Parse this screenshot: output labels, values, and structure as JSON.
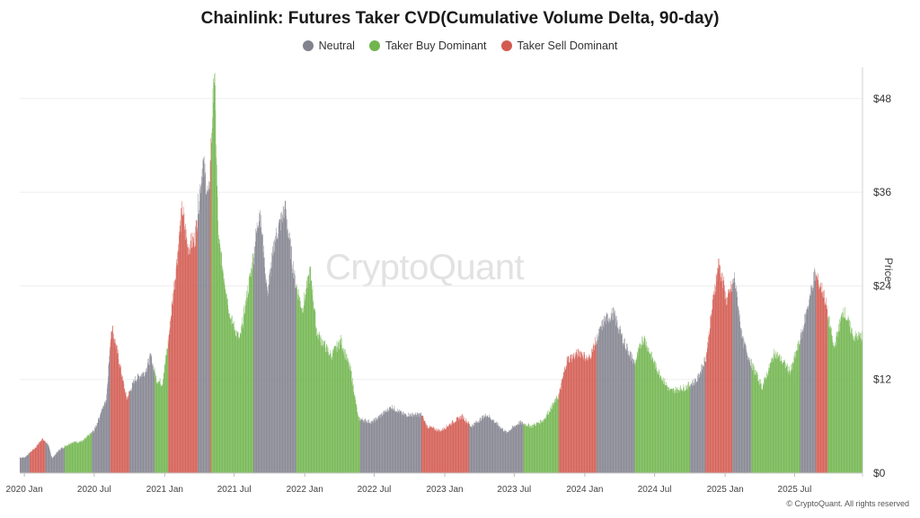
{
  "chart_data": {
    "type": "bar",
    "title": "Chainlink: Futures Taker CVD(Cumulative Volume Delta, 90-day)",
    "ylabel": "Price",
    "xlabel": "",
    "ylim": [
      0,
      52
    ],
    "y_ticks": [
      "$0",
      "$12",
      "$24",
      "$36",
      "$48"
    ],
    "y_tick_values": [
      0,
      12,
      24,
      36,
      48
    ],
    "x_ticks": [
      "2020 Jan",
      "2020 Jul",
      "2021 Jan",
      "2021 Jul",
      "2022 Jan",
      "2022 Jul",
      "2023 Jan",
      "2023 Jul",
      "2024 Jan",
      "2024 Jul",
      "2025 Jan",
      "2025 Jul"
    ],
    "x_tick_dates": [
      "2020-01-01",
      "2020-07-01",
      "2021-01-01",
      "2021-07-01",
      "2022-01-01",
      "2022-07-01",
      "2023-01-01",
      "2023-07-01",
      "2024-01-01",
      "2024-07-01",
      "2025-01-01",
      "2025-07-01"
    ],
    "x_range": [
      "2019-12-20",
      "2025-12-25"
    ],
    "grid": true,
    "legend_position": "top-center",
    "series": [
      {
        "name": "Neutral",
        "color": "#83838f"
      },
      {
        "name": "Taker Buy Dominant",
        "color": "#71b54e"
      },
      {
        "name": "Taker Sell Dominant",
        "color": "#d35a50"
      }
    ],
    "price_points": [
      [
        "2020-01-01",
        2.0
      ],
      [
        "2020-02-01",
        3.4
      ],
      [
        "2020-02-15",
        4.4
      ],
      [
        "2020-03-01",
        3.8
      ],
      [
        "2020-03-13",
        1.9
      ],
      [
        "2020-04-01",
        3.0
      ],
      [
        "2020-05-01",
        3.9
      ],
      [
        "2020-06-01",
        4.1
      ],
      [
        "2020-07-01",
        5.5
      ],
      [
        "2020-07-20",
        8.0
      ],
      [
        "2020-08-01",
        9.5
      ],
      [
        "2020-08-15",
        19.0
      ],
      [
        "2020-09-01",
        15.0
      ],
      [
        "2020-09-23",
        9.5
      ],
      [
        "2020-10-15",
        12.0
      ],
      [
        "2020-11-10",
        13.0
      ],
      [
        "2020-11-25",
        15.0
      ],
      [
        "2020-12-10",
        12.0
      ],
      [
        "2020-12-25",
        11.5
      ],
      [
        "2021-01-10",
        17.0
      ],
      [
        "2021-01-25",
        24.0
      ],
      [
        "2021-02-15",
        34.0
      ],
      [
        "2021-03-01",
        29.0
      ],
      [
        "2021-03-20",
        30.0
      ],
      [
        "2021-04-10",
        40.0
      ],
      [
        "2021-04-25",
        35.0
      ],
      [
        "2021-05-10",
        52.0
      ],
      [
        "2021-05-20",
        30.0
      ],
      [
        "2021-06-05",
        25.0
      ],
      [
        "2021-06-20",
        20.0
      ],
      [
        "2021-07-15",
        17.0
      ],
      [
        "2021-08-20",
        28.0
      ],
      [
        "2021-09-05",
        34.0
      ],
      [
        "2021-09-25",
        23.0
      ],
      [
        "2021-10-15",
        30.0
      ],
      [
        "2021-11-10",
        34.0
      ],
      [
        "2021-12-05",
        25.0
      ],
      [
        "2021-12-25",
        21.0
      ],
      [
        "2022-01-15",
        26.0
      ],
      [
        "2022-02-01",
        18.0
      ],
      [
        "2022-03-10",
        15.0
      ],
      [
        "2022-04-05",
        17.0
      ],
      [
        "2022-05-01",
        13.0
      ],
      [
        "2022-05-20",
        7.0
      ],
      [
        "2022-06-25",
        6.5
      ],
      [
        "2022-07-20",
        7.5
      ],
      [
        "2022-08-15",
        8.5
      ],
      [
        "2022-09-15",
        7.5
      ],
      [
        "2022-11-01",
        7.5
      ],
      [
        "2022-11-15",
        6.0
      ],
      [
        "2022-12-20",
        5.4
      ],
      [
        "2023-01-20",
        6.5
      ],
      [
        "2023-02-15",
        7.3
      ],
      [
        "2023-03-10",
        6.0
      ],
      [
        "2023-04-20",
        7.5
      ],
      [
        "2023-06-10",
        5.2
      ],
      [
        "2023-07-15",
        6.5
      ],
      [
        "2023-08-15",
        6.0
      ],
      [
        "2023-09-15",
        6.8
      ],
      [
        "2023-10-25",
        10.0
      ],
      [
        "2023-11-15",
        14.5
      ],
      [
        "2023-12-20",
        15.5
      ],
      [
        "2024-01-10",
        14.5
      ],
      [
        "2024-02-20",
        19.5
      ],
      [
        "2024-03-15",
        20.5
      ],
      [
        "2024-04-10",
        17.0
      ],
      [
        "2024-05-10",
        14.0
      ],
      [
        "2024-06-01",
        17.5
      ],
      [
        "2024-07-05",
        13.5
      ],
      [
        "2024-08-10",
        10.5
      ],
      [
        "2024-09-20",
        11.0
      ],
      [
        "2024-10-20",
        12.0
      ],
      [
        "2024-11-12",
        15.0
      ],
      [
        "2024-12-05",
        24.0
      ],
      [
        "2024-12-15",
        27.0
      ],
      [
        "2025-01-05",
        22.0
      ],
      [
        "2025-01-25",
        25.0
      ],
      [
        "2025-02-15",
        17.0
      ],
      [
        "2025-03-10",
        14.0
      ],
      [
        "2025-04-07",
        11.0
      ],
      [
        "2025-05-10",
        15.5
      ],
      [
        "2025-06-20",
        13.0
      ],
      [
        "2025-07-20",
        18.0
      ],
      [
        "2025-08-22",
        25.5
      ],
      [
        "2025-09-15",
        23.0
      ],
      [
        "2025-10-11",
        16.0
      ],
      [
        "2025-11-05",
        21.0
      ],
      [
        "2025-12-01",
        17.5
      ],
      [
        "2025-12-20",
        17.5
      ]
    ],
    "segments": [
      [
        "2019-12-20",
        "2020-01-15",
        "neutral"
      ],
      [
        "2020-01-15",
        "2020-02-25",
        "sell"
      ],
      [
        "2020-02-25",
        "2020-04-15",
        "neutral"
      ],
      [
        "2020-04-15",
        "2020-06-25",
        "buy"
      ],
      [
        "2020-06-25",
        "2020-08-12",
        "neutral"
      ],
      [
        "2020-08-12",
        "2020-10-01",
        "sell"
      ],
      [
        "2020-10-01",
        "2020-12-05",
        "neutral"
      ],
      [
        "2020-12-05",
        "2021-01-10",
        "buy"
      ],
      [
        "2021-01-10",
        "2021-03-28",
        "sell"
      ],
      [
        "2021-03-28",
        "2021-04-28",
        "neutral"
      ],
      [
        "2021-04-28",
        "2021-05-02",
        "sell"
      ],
      [
        "2021-05-02",
        "2021-08-20",
        "buy"
      ],
      [
        "2021-08-20",
        "2021-12-10",
        "neutral"
      ],
      [
        "2021-12-10",
        "2022-05-25",
        "buy"
      ],
      [
        "2022-05-25",
        "2022-11-01",
        "neutral"
      ],
      [
        "2022-11-01",
        "2023-03-05",
        "sell"
      ],
      [
        "2023-03-05",
        "2023-07-25",
        "neutral"
      ],
      [
        "2023-07-25",
        "2023-10-25",
        "buy"
      ],
      [
        "2023-10-25",
        "2024-02-01",
        "sell"
      ],
      [
        "2024-02-01",
        "2024-05-10",
        "neutral"
      ],
      [
        "2024-05-10",
        "2024-10-01",
        "buy"
      ],
      [
        "2024-10-01",
        "2024-11-10",
        "neutral"
      ],
      [
        "2024-11-10",
        "2025-01-20",
        "sell"
      ],
      [
        "2025-01-20",
        "2025-03-10",
        "neutral"
      ],
      [
        "2025-03-10",
        "2025-07-15",
        "buy"
      ],
      [
        "2025-07-15",
        "2025-08-25",
        "neutral"
      ],
      [
        "2025-08-25",
        "2025-09-25",
        "sell"
      ],
      [
        "2025-09-25",
        "2025-12-25",
        "buy"
      ]
    ]
  },
  "legend": {
    "neutral_label": "Neutral",
    "buy_label": "Taker Buy Dominant",
    "sell_label": "Taker Sell Dominant"
  },
  "colors": {
    "neutral": "#83838f",
    "buy": "#71b54e",
    "sell": "#d35a50"
  },
  "watermark": "CryptoQuant",
  "footer": "© CryptoQuant. All rights reserved"
}
